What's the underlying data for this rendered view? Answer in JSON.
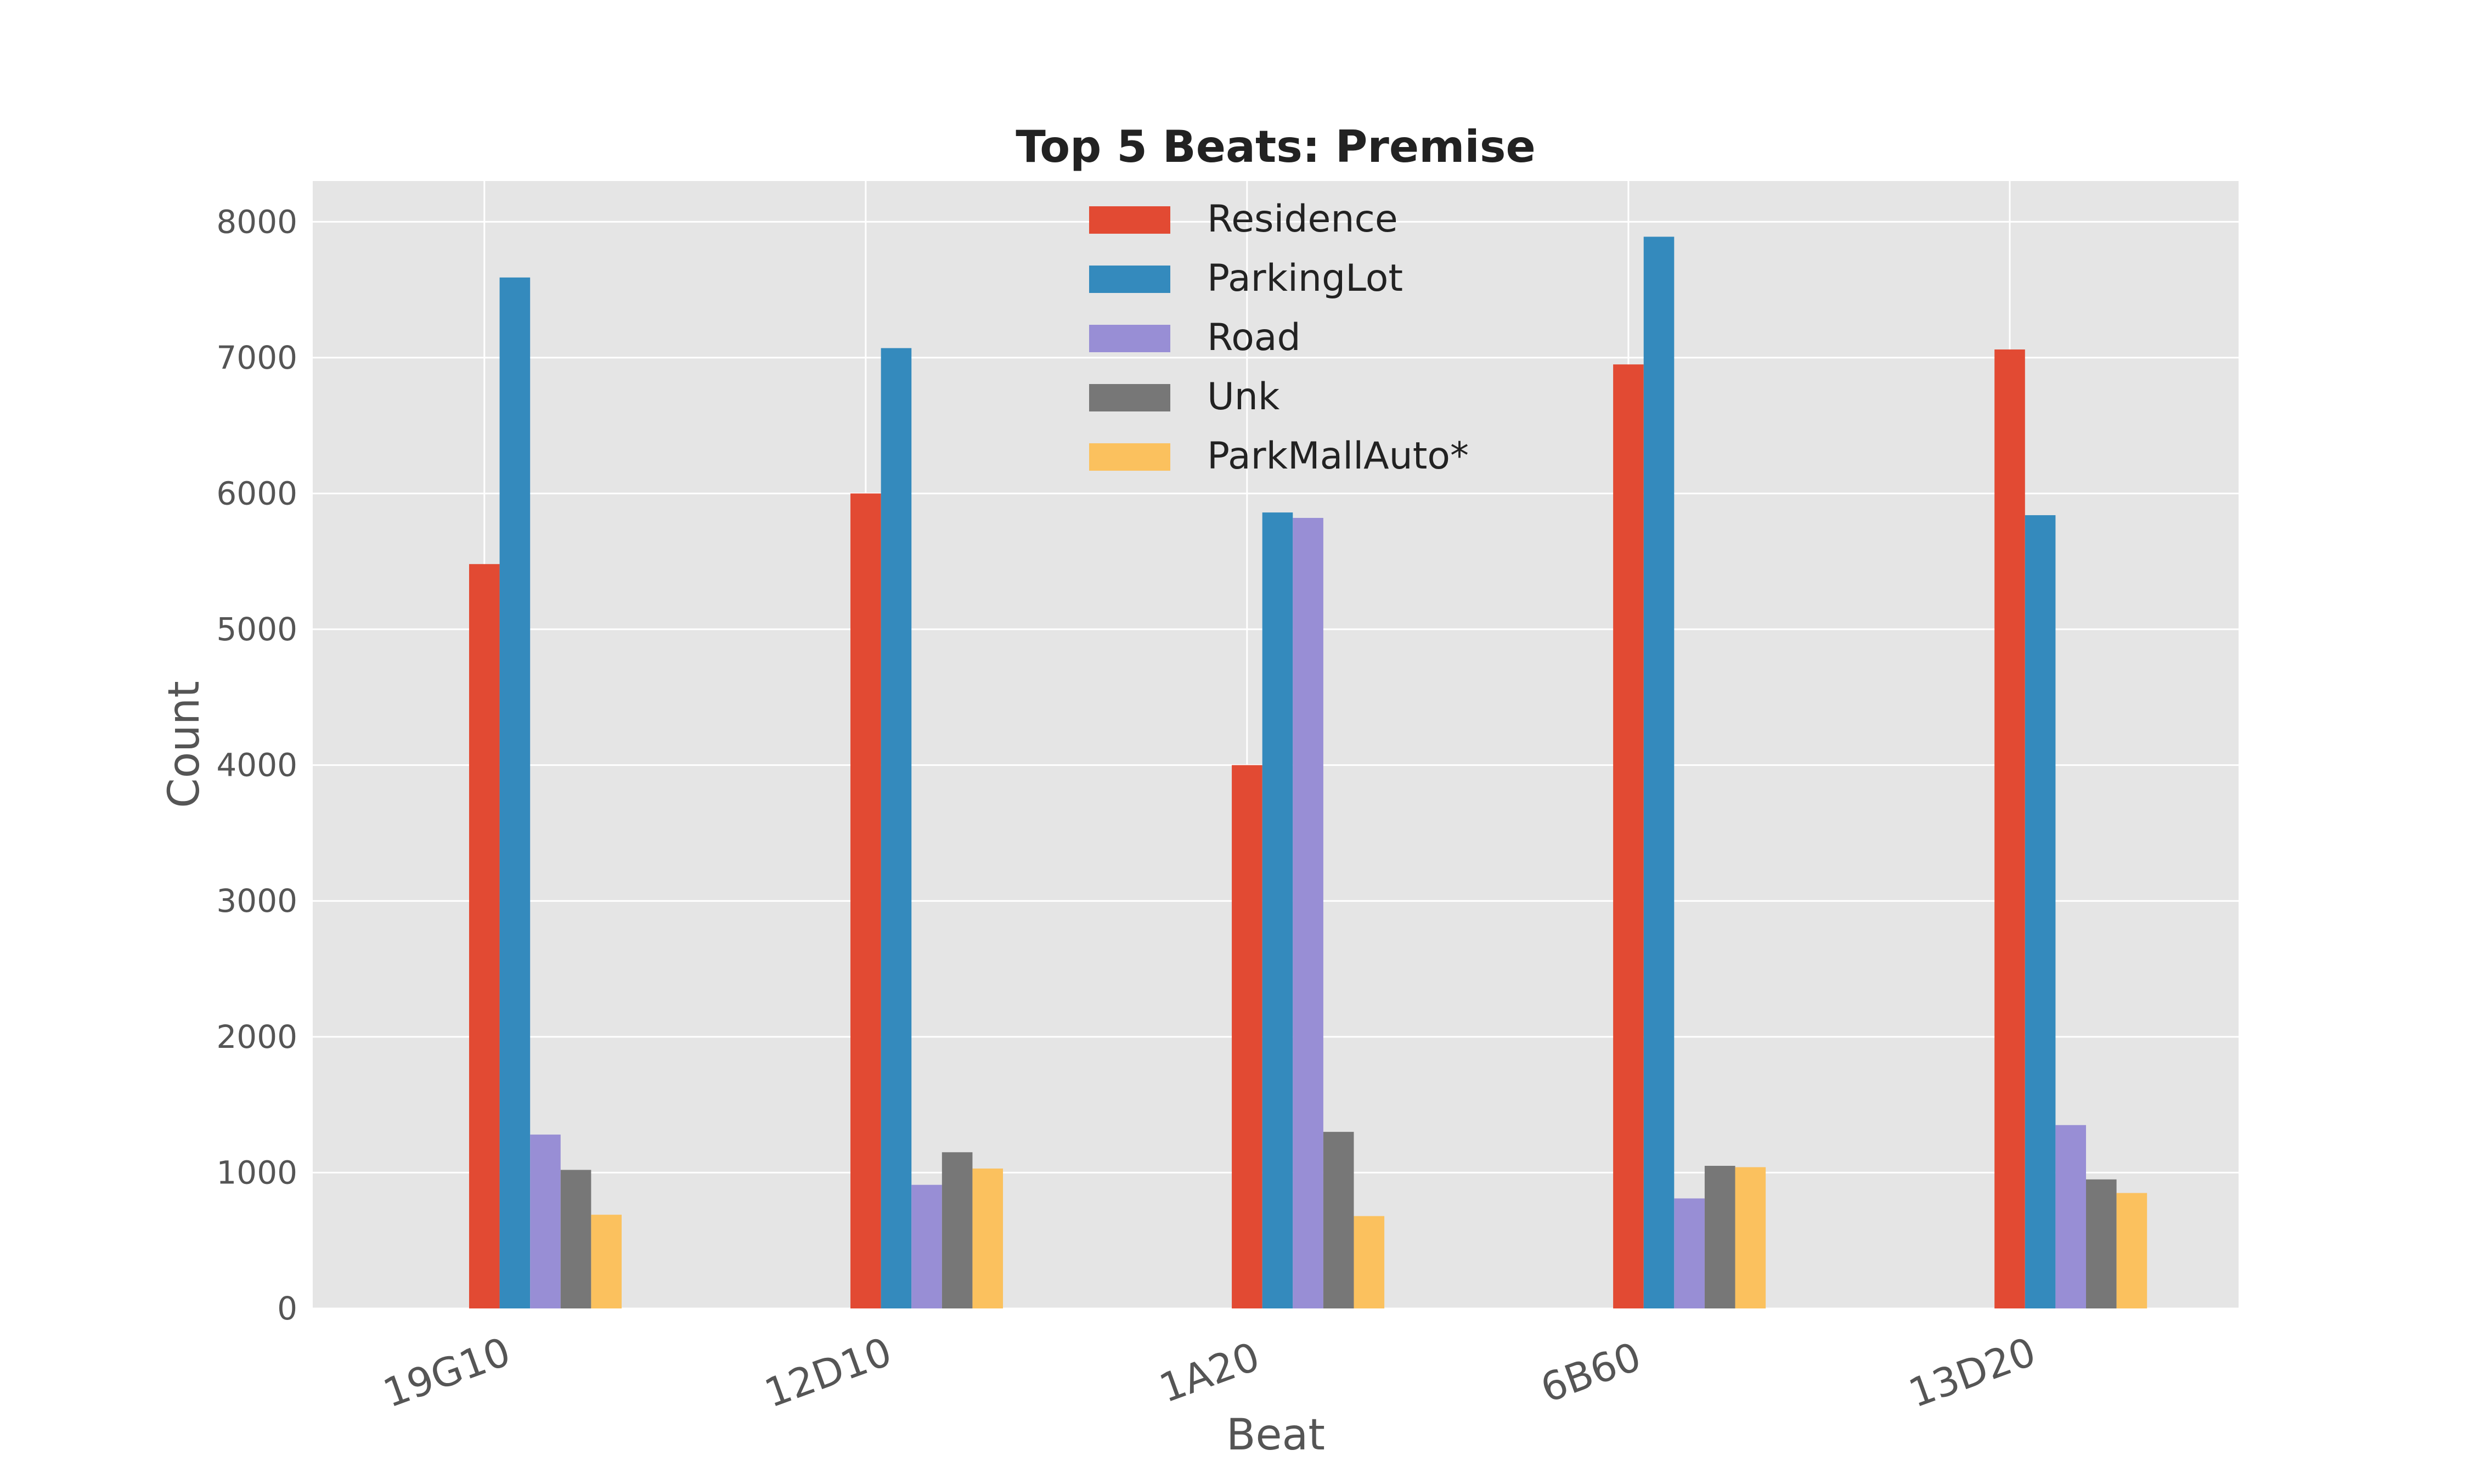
{
  "chart_data": {
    "type": "bar",
    "title": "Top 5 Beats: Premise",
    "xlabel": "Beat",
    "ylabel": "Count",
    "categories": [
      "19G10",
      "12D10",
      "1A20",
      "6B60",
      "13D20"
    ],
    "ylim": [
      0,
      8300
    ],
    "yticks": [
      0,
      1000,
      2000,
      3000,
      4000,
      5000,
      6000,
      7000,
      8000
    ],
    "grid": true,
    "legend_position": "top-center",
    "series": [
      {
        "name": "Residence",
        "color": "#E24A33",
        "values": [
          5480,
          6000,
          4000,
          6950,
          7060
        ]
      },
      {
        "name": "ParkingLot",
        "color": "#348ABD",
        "values": [
          7590,
          7070,
          5860,
          7890,
          5840
        ]
      },
      {
        "name": "Road",
        "color": "#988ED5",
        "values": [
          1280,
          910,
          5820,
          810,
          1350
        ]
      },
      {
        "name": "Unk",
        "color": "#777777",
        "values": [
          1020,
          1150,
          1300,
          1050,
          950
        ]
      },
      {
        "name": "ParkMallAuto*",
        "color": "#FBC15E",
        "values": [
          690,
          1030,
          680,
          1040,
          850
        ]
      }
    ]
  }
}
